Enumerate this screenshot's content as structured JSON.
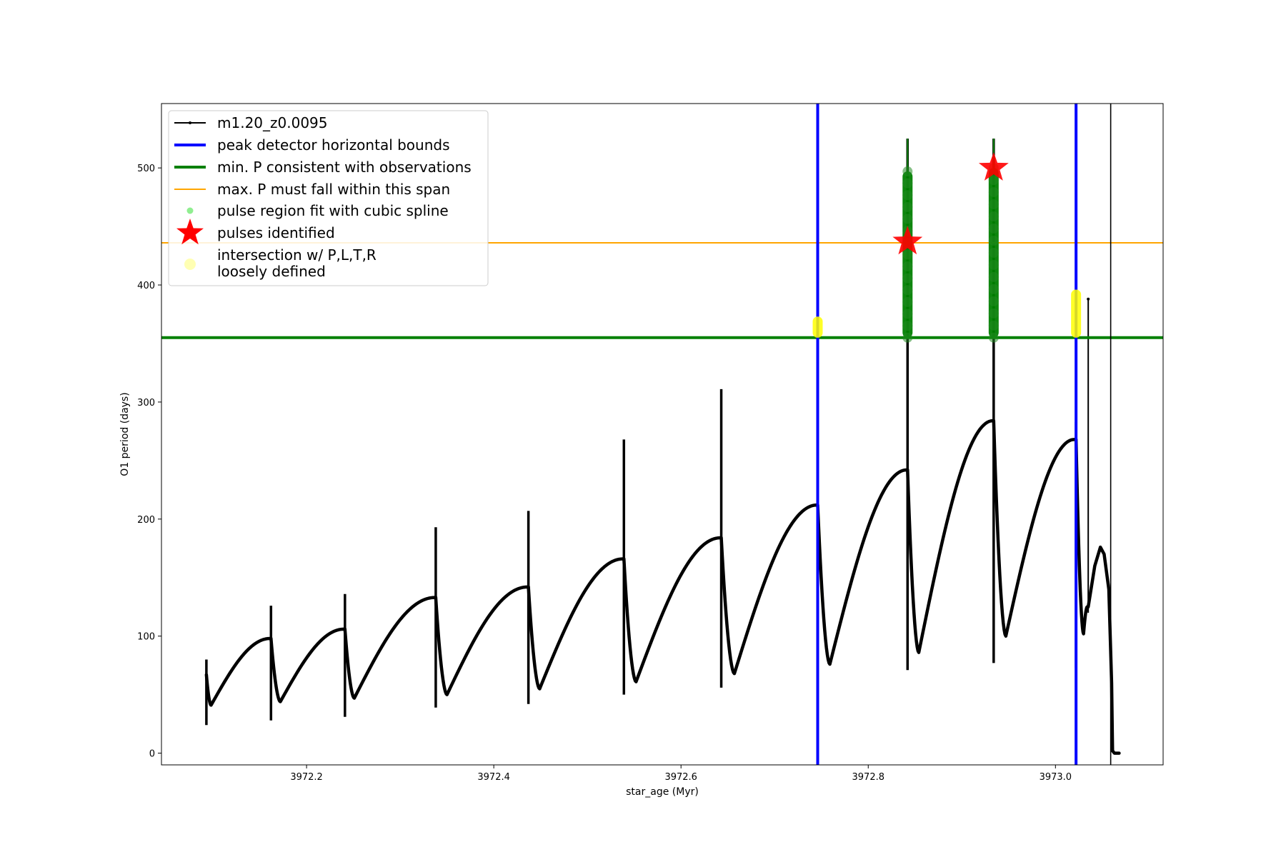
{
  "chart_data": {
    "type": "line",
    "xlabel": "star_age (Myr)",
    "ylabel": "O1 period (days)",
    "xlim": [
      3972.045,
      3973.115
    ],
    "ylim": [
      -10,
      555
    ],
    "x_ticks": [
      3972.2,
      3972.4,
      3972.6,
      3972.8,
      3973.0
    ],
    "x_tick_labels": [
      "3972.2",
      "3972.4",
      "3972.6",
      "3972.8",
      "3973.0"
    ],
    "y_ticks": [
      0,
      100,
      200,
      300,
      400,
      500
    ],
    "y_tick_labels": [
      "0",
      "100",
      "200",
      "300",
      "400",
      "500"
    ],
    "grid": false,
    "legend_position": "top-left",
    "legend": [
      {
        "label": "m1.20_z0.0095",
        "kind": "line-marker",
        "color": "#000000"
      },
      {
        "label": "peak detector horizontal bounds",
        "kind": "thick-line",
        "color": "#0000ff"
      },
      {
        "label": "min. P consistent with observations",
        "kind": "thick-line",
        "color": "#008000"
      },
      {
        "label": "max. P must fall within this span",
        "kind": "thin-line",
        "color": "#ffa500"
      },
      {
        "label": "pulse region fit with cubic spline",
        "kind": "dot",
        "color": "#90ee90"
      },
      {
        "label": "pulses identified",
        "kind": "star",
        "color": "#ff0000"
      },
      {
        "label": "intersection w/ P,L,T,R\nloosely defined",
        "kind": "big-dot",
        "color": "#ffff99"
      }
    ],
    "series": [
      {
        "name": "m1.20_z0.0095",
        "color": "#000000",
        "cycles": [
          {
            "t0": 3972.093,
            "spike_low": 24,
            "spike_high": 80,
            "start": 67,
            "min_x": 3972.098,
            "min_y": 41,
            "end_x": 3972.161,
            "end_y": 98
          },
          {
            "t0": 3972.162,
            "spike_low": 28,
            "spike_high": 126,
            "start": 98,
            "min_x": 3972.172,
            "min_y": 44,
            "end_x": 3972.24,
            "end_y": 106
          },
          {
            "t0": 3972.241,
            "spike_low": 31,
            "spike_high": 136,
            "start": 106,
            "min_x": 3972.251,
            "min_y": 47,
            "end_x": 3972.337,
            "end_y": 133
          },
          {
            "t0": 3972.338,
            "spike_low": 39,
            "spike_high": 193,
            "start": 133,
            "min_x": 3972.35,
            "min_y": 50,
            "end_x": 3972.436,
            "end_y": 142
          },
          {
            "t0": 3972.437,
            "spike_low": 42,
            "spike_high": 207,
            "start": 142,
            "min_x": 3972.449,
            "min_y": 55,
            "end_x": 3972.538,
            "end_y": 166
          },
          {
            "t0": 3972.539,
            "spike_low": 50,
            "spike_high": 268,
            "start": 166,
            "min_x": 3972.552,
            "min_y": 61,
            "end_x": 3972.642,
            "end_y": 184
          },
          {
            "t0": 3972.643,
            "spike_low": 56,
            "spike_high": 311,
            "start": 184,
            "min_x": 3972.657,
            "min_y": 68,
            "end_x": 3972.745,
            "end_y": 212
          },
          {
            "t0": 3972.746,
            "spike_low": 64,
            "spike_high": 212,
            "start": 212,
            "min_x": 3972.759,
            "min_y": 76,
            "end_x": 3972.841,
            "end_y": 242
          },
          {
            "t0": 3972.842,
            "spike_low": 71,
            "spike_high": 525,
            "start": 242,
            "min_x": 3972.854,
            "min_y": 86,
            "end_x": 3972.933,
            "end_y": 284
          },
          {
            "t0": 3972.934,
            "spike_low": 77,
            "spike_high": 525,
            "start": 284,
            "min_x": 3972.947,
            "min_y": 100,
            "end_x": 3973.02,
            "end_y": 268
          },
          {
            "t0": 3973.022,
            "spike_low": 73,
            "spike_high": 283,
            "start": 268,
            "min_x": 3973.03,
            "min_y": 102,
            "end_x": 3973.034,
            "end_y": 125
          }
        ],
        "tail": {
          "spike_x": 3973.035,
          "spike_low": 120,
          "spike_high": 388,
          "points": [
            [
              3973.035,
              125
            ],
            [
              3973.042,
              160
            ],
            [
              3973.048,
              176
            ],
            [
              3973.052,
              170
            ],
            [
              3973.057,
              140
            ],
            [
              3973.06,
              60
            ],
            [
              3973.061,
              2
            ],
            [
              3973.063,
              0
            ],
            [
              3973.068,
              0
            ]
          ]
        }
      }
    ],
    "vertical_lines": [
      {
        "label": "peak detector horizontal bounds",
        "x": 3972.746,
        "color": "#0000ff"
      },
      {
        "label": "peak detector horizontal bounds",
        "x": 3973.022,
        "color": "#0000ff"
      },
      {
        "x": 3973.059,
        "color": "#000000"
      }
    ],
    "horizontal_lines": [
      {
        "label": "min. P consistent with observations",
        "y": 355,
        "color": "#008000"
      },
      {
        "label": "max. P must fall within this span",
        "y": 436,
        "color": "#ffa500"
      }
    ],
    "pulse_regions": [
      {
        "x": 3972.842,
        "y_from": 355,
        "y_to": 497,
        "spike_top": 525,
        "color": "#008000"
      },
      {
        "x": 3972.934,
        "y_from": 355,
        "y_to": 500,
        "spike_top": 525,
        "color": "#008000"
      }
    ],
    "pulses_identified": [
      {
        "x": 3972.842,
        "y": 437
      },
      {
        "x": 3972.934,
        "y": 500
      }
    ],
    "intersections": [
      {
        "x": 3972.746,
        "y_from": 358,
        "y_to": 370
      },
      {
        "x": 3973.022,
        "y_from": 358,
        "y_to": 393
      }
    ]
  }
}
